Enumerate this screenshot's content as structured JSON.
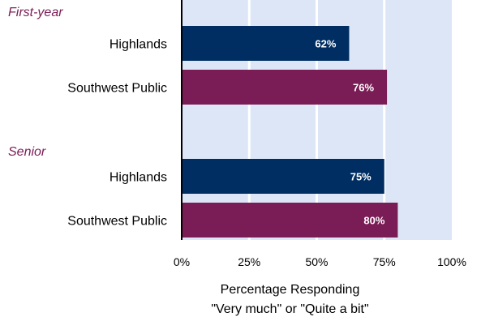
{
  "chart_data": {
    "type": "bar",
    "orientation": "horizontal",
    "groups": [
      {
        "label": "First-year",
        "bars": [
          {
            "category": "Highlands",
            "value": 62,
            "label": "62%",
            "color": "#002D62"
          },
          {
            "category": "Southwest Public",
            "value": 76,
            "label": "76%",
            "color": "#7A1C55"
          }
        ]
      },
      {
        "label": "Senior",
        "bars": [
          {
            "category": "Highlands",
            "value": 75,
            "label": "75%",
            "color": "#002D62"
          },
          {
            "category": "Southwest Public",
            "value": 80,
            "label": "80%",
            "color": "#7A1C55"
          }
        ]
      }
    ],
    "xlim": [
      0,
      100
    ],
    "xticks": [
      "0%",
      "25%",
      "50%",
      "75%",
      "100%"
    ],
    "xlabel_line1": "Percentage Responding",
    "xlabel_line2": "\"Very much\" or \"Quite a bit\"",
    "grid": true,
    "colors": {
      "plot_background": "#DCE6F7",
      "group_label": "#7A1C55",
      "highlands": "#002D62",
      "southwest_public": "#7A1C55",
      "gridline": "#ffffff",
      "axis": "#000000"
    }
  }
}
